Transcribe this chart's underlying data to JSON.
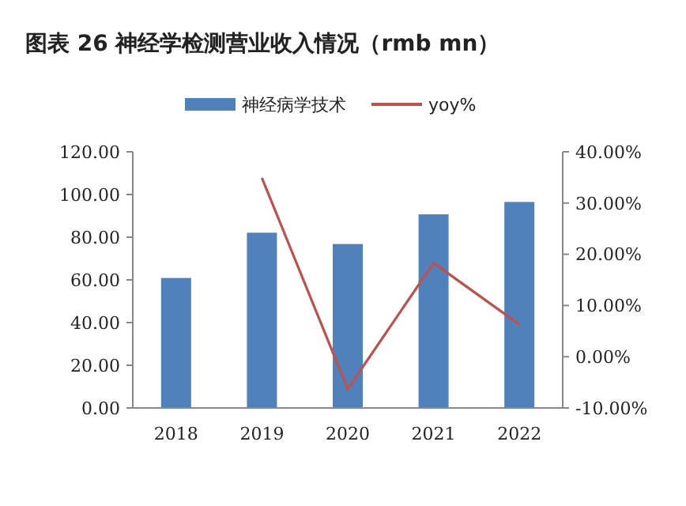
{
  "chart_data": {
    "type": "bar",
    "title": "图表 26  神经学检测营业收入情况（rmb mn）",
    "categories": [
      "2018",
      "2019",
      "2020",
      "2021",
      "2022"
    ],
    "series": [
      {
        "name": "神经病学技术",
        "color": "#4f81bd",
        "values": [
          60.9,
          82.1,
          76.8,
          90.7,
          96.5
        ]
      },
      {
        "name": "yoy%",
        "type": "line",
        "axis": "y2",
        "color": "#c0504d",
        "values": [
          null,
          34.9,
          -6.3,
          18.3,
          6.3
        ]
      }
    ],
    "ylim": [
      0,
      120
    ],
    "yticks": [
      {
        "value": 0,
        "label": "0.00"
      },
      {
        "value": 20,
        "label": "20.00"
      },
      {
        "value": 40,
        "label": "40.00"
      },
      {
        "value": 60,
        "label": "60.00"
      },
      {
        "value": 80,
        "label": "80.00"
      },
      {
        "value": 100,
        "label": "100.00"
      },
      {
        "value": 120,
        "label": "120.00"
      }
    ],
    "y2lim": [
      -10,
      40
    ],
    "y2ticks": [
      {
        "value": -10,
        "label": "-10.00%"
      },
      {
        "value": 0,
        "label": "0.00%"
      },
      {
        "value": 10,
        "label": "10.00%"
      },
      {
        "value": 20,
        "label": "20.00%"
      },
      {
        "value": 30,
        "label": "30.00%"
      },
      {
        "value": 40,
        "label": "40.00%"
      }
    ],
    "legend": "top",
    "grid": false,
    "marker": "none"
  }
}
